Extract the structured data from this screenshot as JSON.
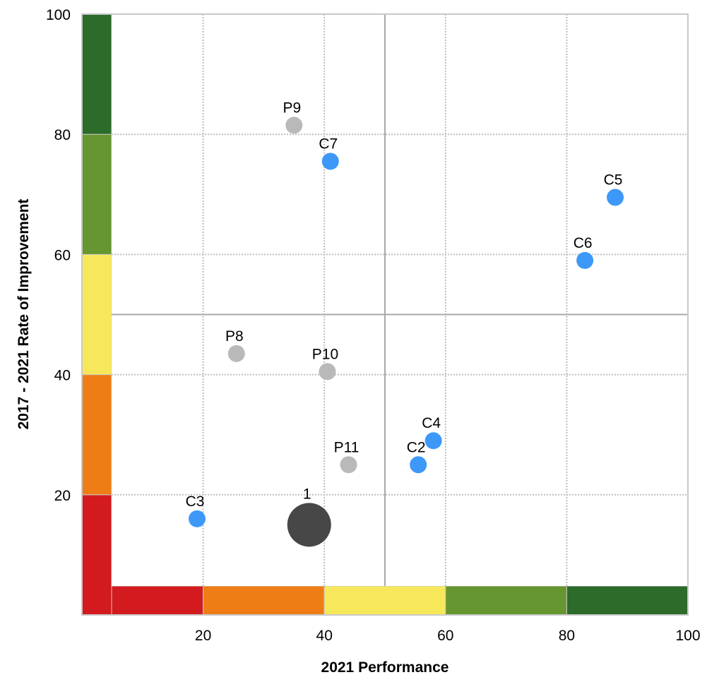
{
  "chart_data": {
    "type": "scatter",
    "xlabel": "2021 Performance",
    "ylabel": "2017 - 2021 Rate of Improvement",
    "xlim": [
      0,
      100
    ],
    "ylim": [
      0,
      100
    ],
    "x_ticks": [
      20,
      40,
      60,
      80,
      100
    ],
    "y_ticks": [
      20,
      40,
      60,
      80,
      100
    ],
    "grid": true,
    "quadrant_dividers": {
      "x": 50,
      "y": 50
    },
    "color_bands": {
      "edges": [
        0,
        20,
        40,
        60,
        80,
        100
      ],
      "colors": [
        "#d31a1e",
        "#ef7d16",
        "#f6e85a",
        "#66962f",
        "#2c6b2a"
      ]
    },
    "points": [
      {
        "label": "P9",
        "x": 35,
        "y": 81.5,
        "color": "#b9b9b9",
        "size": "small"
      },
      {
        "label": "C7",
        "x": 41,
        "y": 75.5,
        "color": "#3d98f8",
        "size": "small"
      },
      {
        "label": "C5",
        "x": 88,
        "y": 69.5,
        "color": "#3d98f8",
        "size": "small"
      },
      {
        "label": "C6",
        "x": 83,
        "y": 59,
        "color": "#3d98f8",
        "size": "small"
      },
      {
        "label": "P8",
        "x": 25.5,
        "y": 43.5,
        "color": "#b9b9b9",
        "size": "small"
      },
      {
        "label": "P10",
        "x": 40.5,
        "y": 40.5,
        "color": "#b9b9b9",
        "size": "small"
      },
      {
        "label": "C4",
        "x": 58,
        "y": 29,
        "color": "#3d98f8",
        "size": "small"
      },
      {
        "label": "P11",
        "x": 44,
        "y": 25,
        "color": "#b9b9b9",
        "size": "small"
      },
      {
        "label": "C2",
        "x": 55.5,
        "y": 25,
        "color": "#3d98f8",
        "size": "small"
      },
      {
        "label": "C3",
        "x": 19,
        "y": 16,
        "color": "#3d98f8",
        "size": "small"
      },
      {
        "label": "1",
        "x": 37.5,
        "y": 15,
        "color": "#474747",
        "size": "large"
      }
    ]
  }
}
